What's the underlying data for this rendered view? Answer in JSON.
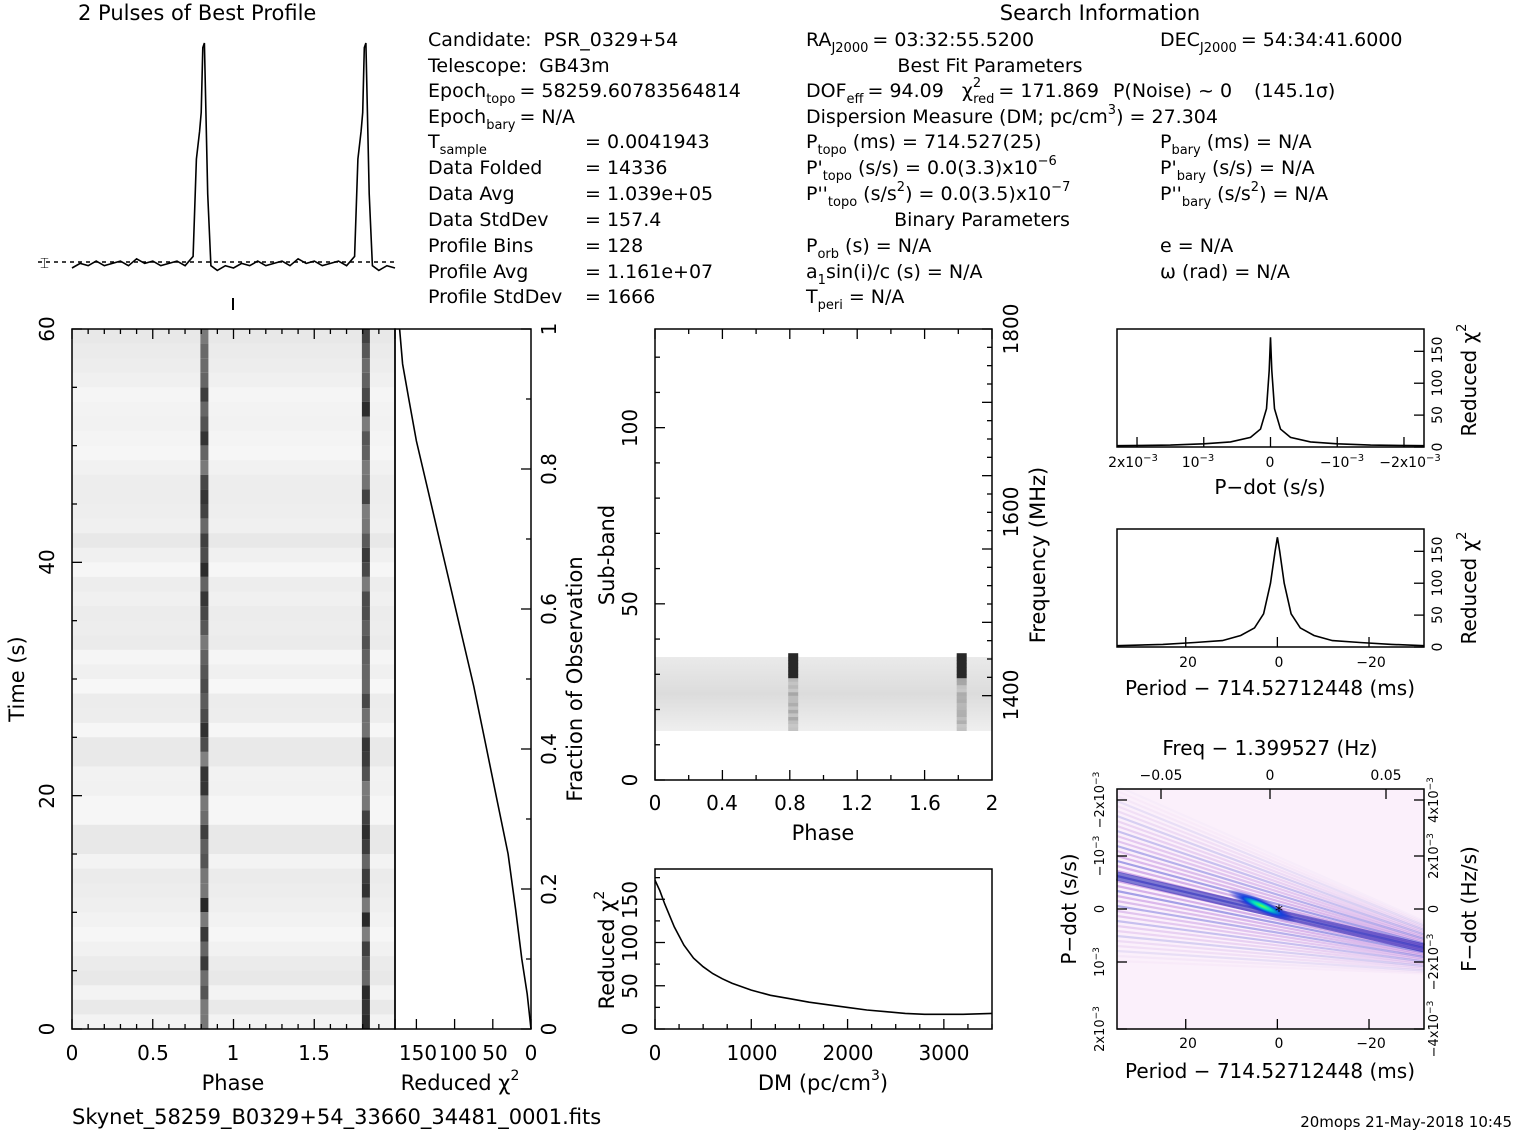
{
  "header": {
    "profile_title": "2 Pulses of Best Profile",
    "search_title": "Search Information",
    "best_fit_title": "Best Fit Parameters",
    "binary_title": "Binary Parameters",
    "filename": "Skynet_58259_B0329+54_33660_34481_0001.fits",
    "footer": "20mops  21-May-2018 10:45"
  },
  "candidate_info": {
    "candidate_label": "Candidate:",
    "candidate_value": "PSR_0329+54",
    "telescope_label": "Telescope:",
    "telescope_value": "GB43m",
    "epoch_topo_label": "Epoch",
    "epoch_topo_sub": "topo",
    "epoch_topo_value": "= 58259.60783564814",
    "epoch_bary_label": "Epoch",
    "epoch_bary_sub": "bary",
    "epoch_bary_value": "= N/A",
    "tsample_label": "T",
    "tsample_sub": "sample",
    "tsample_value": "=   0.0041943",
    "folded_label": "Data Folded",
    "folded_value": "=   14336",
    "avg_label": "Data Avg",
    "avg_value": "=   1.039e+05",
    "std_label": "Data StdDev",
    "std_value": "=   157.4",
    "bins_label": "Profile Bins",
    "bins_value": "=   128",
    "pavg_label": "Profile Avg",
    "pavg_value": "=   1.161e+07",
    "pstd_label": "Profile StdDev",
    "pstd_value": "=   1666"
  },
  "search_info": {
    "ra_label": "RA",
    "ra_sub": "J2000",
    "ra_value": "= 03:32:55.5200",
    "dec_label": "DEC",
    "dec_sub": "J2000",
    "dec_value": "= 54:34:41.6000",
    "dof_label": "DOF",
    "dof_sub": "eff",
    "dof_value": "= 94.09",
    "chi_label": "χ",
    "chi_sup": "2",
    "chi_sub": "red",
    "chi_value": "= 171.869",
    "pnoise": "P(Noise) ~ 0",
    "sigma": "(145.1σ)",
    "dm_text": "Dispersion Measure (DM; pc/cm",
    "dm_sup": "3",
    "dm_value": ") = 27.304",
    "ptopo_label": "P",
    "ptopo_sub": "topo",
    "ptopo_value": "(ms) =  714.527(25)",
    "pbary_label": "P",
    "pbary_sub": "bary",
    "pbary_value": "(ms) = N/A",
    "pdtopo_label": "P'",
    "pdtopo_sub": "topo",
    "pdtopo_value": "(s/s) = 0.0(3.3)x10",
    "pdtopo_exp": "−6",
    "pdbary_label": "P'",
    "pdbary_sub": "bary",
    "pdbary_value": "(s/s) = N/A",
    "pddtopo_label": "P''",
    "pddtopo_sub": "topo",
    "pddtopo_value": "(s/s",
    "pddtopo_sup": "2",
    "pddtopo_tail": ") = 0.0(3.5)x10",
    "pddtopo_exp": "−7",
    "pddbary_label": "P''",
    "pddbary_sub": "bary",
    "pddbary_value": "(s/s",
    "pddbary_sup": "2",
    "pddbary_tail": ") = N/A",
    "porb_label": "P",
    "porb_sub": "orb",
    "porb_value": "(s) = N/A",
    "e_text": "e = N/A",
    "a1_text": "a",
    "a1_sub": "1",
    "a1_value": "sin(i)/c (s) = N/A",
    "omega_text": "ω (rad) = N/A",
    "tperi_label": "T",
    "tperi_sub": "peri",
    "tperi_value": "= N/A"
  },
  "chart_data": [
    {
      "type": "line",
      "name": "profile",
      "x": [
        0,
        0.05,
        0.1,
        0.15,
        0.2,
        0.25,
        0.3,
        0.35,
        0.4,
        0.45,
        0.5,
        0.55,
        0.6,
        0.65,
        0.7,
        0.75,
        0.77,
        0.79,
        0.8,
        0.81,
        0.82,
        0.84,
        0.86,
        0.9,
        0.95,
        1.0,
        1.05,
        1.1,
        1.15,
        1.2,
        1.25,
        1.3,
        1.35,
        1.4,
        1.45,
        1.5,
        1.55,
        1.6,
        1.65,
        1.7,
        1.75,
        1.77,
        1.79,
        1.8,
        1.81,
        1.82,
        1.84,
        1.86,
        1.9,
        1.95,
        2.0
      ],
      "y": [
        0.03,
        0.05,
        0.04,
        0.06,
        0.04,
        0.05,
        0.06,
        0.04,
        0.07,
        0.05,
        0.06,
        0.04,
        0.05,
        0.06,
        0.04,
        0.08,
        0.5,
        0.62,
        0.7,
        0.98,
        1.0,
        0.35,
        0.04,
        0.02,
        0.04,
        0.03,
        0.05,
        0.04,
        0.06,
        0.04,
        0.05,
        0.06,
        0.04,
        0.07,
        0.05,
        0.06,
        0.04,
        0.05,
        0.06,
        0.04,
        0.08,
        0.5,
        0.62,
        0.7,
        0.98,
        1.0,
        0.35,
        0.04,
        0.02,
        0.04,
        0.03
      ]
    },
    {
      "type": "heatmap",
      "name": "time-phase",
      "xlabel": "Phase",
      "ylabel": "Time (s)",
      "xlim": [
        0,
        2
      ],
      "ylim": [
        0,
        60
      ],
      "xticks": [
        "0",
        "0.5",
        "1",
        "1.5"
      ],
      "yticks": [
        "0",
        "20",
        "40",
        "60"
      ],
      "pulse_phases": [
        0.82,
        1.82
      ]
    },
    {
      "type": "line",
      "name": "reduced-chi2-vs-fraction",
      "xlabel": "Reduced χ",
      "xlabel_sup": "2",
      "ylabel": "Fraction of Observation",
      "xticks": [
        "150",
        "100",
        "50",
        "0"
      ],
      "yticks": [
        "0",
        "0.2",
        "0.4",
        "0.6",
        "0.8",
        "1"
      ],
      "x": [
        0,
        5,
        12,
        20,
        30,
        45,
        60,
        75,
        90,
        105,
        120,
        135,
        150,
        160,
        168,
        172
      ],
      "y": [
        0,
        0.05,
        0.1,
        0.17,
        0.25,
        0.33,
        0.41,
        0.49,
        0.56,
        0.63,
        0.7,
        0.77,
        0.84,
        0.9,
        0.95,
        1.0
      ]
    },
    {
      "type": "heatmap",
      "name": "subband-phase",
      "xlabel": "Phase",
      "ylabel": "Sub-band",
      "y2label": "Frequency (MHz)",
      "xlim": [
        0,
        2
      ],
      "ylim": [
        0,
        128
      ],
      "xticks": [
        "0",
        "0.4",
        "0.8",
        "1.2",
        "1.6",
        "2"
      ],
      "yticks": [
        "0",
        "50",
        "100"
      ],
      "y2ticks": [
        "1400",
        "1600",
        "1800"
      ],
      "active_subbands": [
        14,
        35
      ],
      "pulse_phases": [
        0.82,
        1.82
      ]
    },
    {
      "type": "line",
      "name": "dm-curve",
      "xlabel": "DM (pc/cm",
      "xlabel_sup": "3",
      "xlabel_tail": ")",
      "ylabel": "Reduced χ",
      "ylabel_sup": "2",
      "xticks": [
        "0",
        "1000",
        "2000",
        "3000"
      ],
      "yticks": [
        "0",
        "50",
        "100",
        "150"
      ],
      "xlim": [
        0,
        3500
      ],
      "ylim": [
        0,
        185
      ],
      "x": [
        0,
        50,
        100,
        200,
        300,
        400,
        500,
        600,
        700,
        800,
        1000,
        1200,
        1400,
        1600,
        1800,
        2000,
        2200,
        2400,
        2600,
        2800,
        3000,
        3200,
        3500
      ],
      "y": [
        172,
        160,
        145,
        118,
        97,
        82,
        72,
        64,
        58,
        53,
        45,
        39,
        35,
        31,
        28,
        25,
        22,
        20,
        18,
        17,
        17,
        17,
        18
      ]
    },
    {
      "type": "line",
      "name": "pdot-curve",
      "xlabel": "P−dot (s/s)",
      "ylabel": "Reduced χ",
      "ylabel_sup": "2",
      "xticks": [
        "2x10",
        "10",
        "0",
        "−10",
        "−2x10"
      ],
      "xtick_exp": "−3",
      "yticks": [
        "0",
        "50",
        "100",
        "150"
      ],
      "xlim": [
        0.0023,
        -0.0023
      ],
      "ylim": [
        0,
        185
      ],
      "x": [
        0.0023,
        0.0015,
        0.001,
        0.0006,
        0.0003,
        0.00015,
        6e-05,
        2e-05,
        0,
        -2e-05,
        -6e-05,
        -0.00015,
        -0.0003,
        -0.0006,
        -0.001,
        -0.0015,
        -0.0023
      ],
      "y": [
        2,
        3,
        5,
        8,
        15,
        28,
        60,
        120,
        172,
        120,
        60,
        28,
        15,
        8,
        5,
        3,
        2
      ]
    },
    {
      "type": "line",
      "name": "period-curve",
      "xlabel": "Period − 714.52712448 (ms)",
      "ylabel": "Reduced χ",
      "ylabel_sup": "2",
      "xticks": [
        "20",
        "0",
        "−20"
      ],
      "yticks": [
        "0",
        "50",
        "100",
        "150"
      ],
      "xlim": [
        35,
        -32
      ],
      "ylim": [
        0,
        185
      ],
      "x": [
        35,
        25,
        18,
        12,
        8,
        5,
        3,
        1.5,
        0.5,
        0,
        -0.5,
        -1.5,
        -3,
        -5,
        -8,
        -12,
        -18,
        -25,
        -32
      ],
      "y": [
        2,
        4,
        7,
        10,
        18,
        30,
        52,
        100,
        150,
        172,
        150,
        100,
        52,
        30,
        18,
        10,
        7,
        4,
        2
      ]
    },
    {
      "type": "heatmap",
      "name": "period-pdot",
      "title": "Freq − 1.399527 (Hz)",
      "xlabel": "Period − 714.52712448 (ms)",
      "ylabel": "P−dot (s/s)",
      "y2label": "F−dot (Hz/s)",
      "xticks": [
        "20",
        "0",
        "−20"
      ],
      "x2ticks": [
        "−0.05",
        "0",
        "0.05"
      ],
      "yticks": [
        "2x10",
        "10",
        "0",
        "−10",
        "−2x10"
      ],
      "ytick_exp": "−3",
      "y2ticks": [
        "−4x10",
        "−2x10",
        "0",
        "2x10",
        "4x10"
      ],
      "y2tick_exp": "−3",
      "xlim": [
        35,
        -32
      ],
      "ylim": [
        0.0023,
        -0.0023
      ]
    }
  ]
}
